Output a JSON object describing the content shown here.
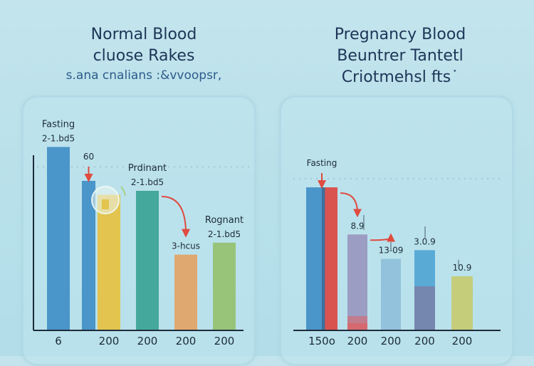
{
  "chart_data": [
    {
      "type": "bar",
      "title": "Normal Blood cluose Rakes",
      "title_lines": [
        "Normal Blood",
        "cluose Rakes"
      ],
      "subtitle": "s.ana cnalians :&vvoopsr,",
      "xlabel": "",
      "ylabel": "",
      "ylim": [
        0,
        100
      ],
      "grid": false,
      "reference_line": {
        "style": "dotted",
        "value": 82
      },
      "categories": [
        "6",
        "",
        "200",
        "200",
        "200",
        "200"
      ],
      "bars": [
        {
          "name": "Fasting",
          "value": 92,
          "color": "#4a95c9",
          "label_lines": [
            "Fasting",
            "2-1.bd5"
          ]
        },
        {
          "name": "60",
          "value": 75,
          "color": "#4a95c9",
          "label_lines": [
            "60"
          ],
          "arrow": "down",
          "arrow_color": "#e04a3f"
        },
        {
          "name": "yellow",
          "value": 68,
          "color": "#e2c44f",
          "label_lines": []
        },
        {
          "name": "Pregnant",
          "value": 70,
          "color": "#45a89c",
          "label_lines": [
            "Prdinant",
            "2-1.bd5"
          ]
        },
        {
          "name": "3-hours",
          "value": 38,
          "color": "#dfa870",
          "label_lines": [
            "3-hcus"
          ]
        },
        {
          "name": "Pregnant 2",
          "value": 44,
          "color": "#97c479",
          "label_lines": [
            "Rognant",
            "2-1.bd5"
          ]
        }
      ],
      "annotations": [
        {
          "type": "arrow",
          "from": "Pregnant",
          "to": "3-hours",
          "color": "#e04a3f"
        }
      ]
    },
    {
      "type": "bar",
      "title": "Pregnancy Blood Beuntrer Tantetl Criotmehsl fts",
      "title_lines": [
        "Pregnancy Blood",
        "Beuntrer Tantetl",
        "Criotmehsl fts˙"
      ],
      "xlabel": "",
      "ylabel": "",
      "ylim": [
        0,
        100
      ],
      "grid": false,
      "reference_line": {
        "style": "dotted",
        "value": 87
      },
      "categories": [
        "150o",
        "200",
        "200",
        "200",
        "200"
      ],
      "bars": [
        {
          "name": "Fasting",
          "value": 82,
          "color": "#4a95c9",
          "color2": "#d9534f",
          "label_lines": [
            "Fasting"
          ],
          "arrow": "down",
          "arrow_color": "#e04a3f"
        },
        {
          "name": "8.9",
          "value": 55,
          "color": "#9b9dc3",
          "accent": "#e06060",
          "label_lines": [
            "8.9"
          ]
        },
        {
          "name": "13-09",
          "value": 41,
          "color": "#93c2dc",
          "label_lines": [
            "13-09"
          ]
        },
        {
          "name": "3.0.9",
          "value": 46,
          "color": "#5aaad6",
          "color2": "#7a80a8",
          "label_lines": [
            "3.0.9"
          ]
        },
        {
          "name": "10.9",
          "value": 31,
          "color": "#c5cd7a",
          "label_lines": [
            "10.9"
          ]
        }
      ],
      "annotations": [
        {
          "type": "arrow",
          "from": "Fasting",
          "to": "8.9",
          "color": "#e04a3f"
        },
        {
          "type": "arrow",
          "from": "8.9",
          "to": "13-09",
          "color": "#e04a3f"
        }
      ]
    }
  ]
}
